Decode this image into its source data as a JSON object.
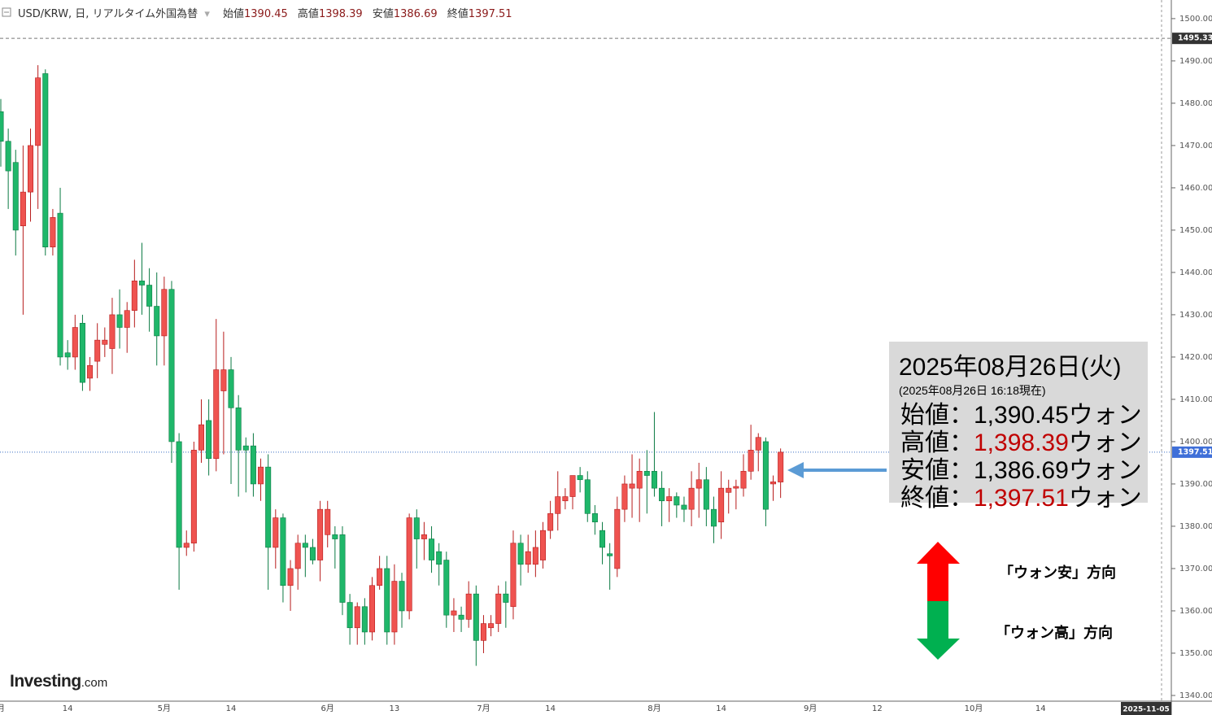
{
  "chart_data": {
    "type": "candlestick",
    "title": "USD/KRW, 日, リアルタイム外国為替",
    "header": {
      "open_label": "始値",
      "open": 1390.45,
      "high_label": "高値",
      "high": 1398.39,
      "low_label": "安値",
      "low": 1386.69,
      "close_label": "終値",
      "close": 1397.51
    },
    "up_color": "#ef5350",
    "down_color": "#1fb76a",
    "categories": [
      "月",
      null,
      null,
      null,
      null,
      null,
      null,
      null,
      null,
      "14",
      null,
      null,
      null,
      null,
      null,
      null,
      null,
      null,
      null,
      null,
      null,
      null,
      "5月",
      null,
      null,
      null,
      null,
      null,
      null,
      null,
      null,
      "14",
      null,
      null,
      null,
      null,
      null,
      null,
      null,
      null,
      null,
      null,
      null,
      null,
      "6月",
      null,
      null,
      null,
      null,
      null,
      null,
      null,
      null,
      "13",
      null,
      null,
      null,
      null,
      null,
      null,
      null,
      null,
      null,
      null,
      null,
      "7月",
      null,
      null,
      null,
      null,
      null,
      null,
      null,
      null,
      "14",
      null,
      null,
      null,
      null,
      null,
      null,
      null,
      null,
      null,
      null,
      null,
      null,
      null,
      "8月",
      null,
      null,
      null,
      null,
      null,
      null,
      null,
      null,
      "14",
      null,
      null,
      null,
      null,
      null,
      null,
      null,
      null,
      null,
      null,
      null,
      "9月",
      null,
      null,
      null,
      null,
      null,
      null,
      null,
      null,
      "12",
      null,
      null,
      null,
      null,
      null,
      null,
      null,
      null,
      null,
      null,
      null,
      null,
      "10月",
      null,
      null,
      null,
      null,
      null,
      null,
      null,
      null,
      "14",
      null,
      null,
      null,
      null,
      null,
      null,
      null,
      null,
      null,
      null,
      null,
      null,
      null,
      null,
      null
    ],
    "open": [
      1478,
      1471,
      1466,
      1451,
      1459,
      1470,
      1487,
      1446,
      1454,
      1421,
      1420,
      1428,
      1415,
      1419,
      1423,
      1422,
      1430,
      1427,
      1431,
      1438,
      1437,
      1432,
      1425,
      1436,
      1400,
      1375,
      1376,
      1398,
      1405,
      1396,
      1412,
      1417,
      1408,
      1399,
      1399,
      1390,
      1394,
      1375,
      1382,
      1366,
      1370,
      1376,
      1375,
      1372,
      1378,
      1378,
      1378,
      1362,
      1356,
      1361,
      1355,
      1366,
      1370,
      1355,
      1367,
      1360,
      1382,
      1377,
      1377,
      1374,
      1372,
      1359,
      1359,
      1358,
      1364,
      1353,
      1356,
      1357,
      1364,
      1361,
      1376,
      1371,
      1371,
      1372,
      1379,
      1383,
      1386,
      1387,
      1392,
      1391,
      1383,
      1379,
      1373.5,
      1370,
      1384,
      1389,
      1389,
      1393,
      1393,
      1389,
      1386,
      1387,
      1385,
      1384,
      1389,
      1391,
      1384,
      1381,
      1388,
      1389,
      1389,
      1393,
      1398,
      1400,
      1390,
      1390.45,
      null,
      null,
      null,
      null,
      null,
      null,
      null,
      null,
      null,
      null,
      null,
      null,
      null,
      null,
      null,
      null,
      null,
      null,
      null,
      null,
      null,
      null,
      null,
      null,
      null,
      null,
      null,
      null,
      null,
      null,
      null,
      null,
      null,
      null,
      null,
      null,
      null,
      null,
      null,
      null,
      null,
      null,
      null,
      null,
      null,
      null,
      null,
      null,
      null,
      null
    ],
    "high": [
      1481,
      1474,
      1469,
      1470,
      1474,
      1489,
      1488,
      1455,
      1460,
      1424,
      1430,
      1430,
      1420,
      1428,
      1427,
      1434,
      1436,
      1433,
      1443,
      1447,
      1441,
      1440,
      1439,
      1438,
      1402,
      1379,
      1400,
      1410,
      1410,
      1429,
      1426,
      1420,
      1411,
      1401,
      1402,
      1396,
      1397,
      1384,
      1383,
      1372,
      1378,
      1378,
      1377,
      1386,
      1386,
      1380,
      1380,
      1364,
      1362,
      1363,
      1368,
      1373,
      1373,
      1371,
      1369,
      1383,
      1384,
      1381,
      1380,
      1376,
      1374,
      1363,
      1361,
      1367,
      1366,
      1359,
      1359,
      1366,
      1367,
      1379,
      1378,
      1378,
      1379,
      1381,
      1386,
      1393,
      1389,
      1391,
      1394,
      1393,
      1385,
      1381,
      1376,
      1387,
      1392,
      1397,
      1396,
      1398,
      1407,
      1393,
      1389,
      1388,
      1387,
      1393,
      1395,
      1394,
      1387,
      1393,
      1391,
      1391,
      1397,
      1404,
      1402,
      1401,
      1392,
      1398.39,
      null,
      null,
      null,
      null,
      null,
      null,
      null,
      null,
      null,
      null,
      null,
      null,
      null,
      null,
      null,
      null,
      null,
      null,
      null,
      null,
      null,
      null,
      null,
      null,
      null,
      null,
      null,
      null,
      null,
      null,
      null,
      null,
      null,
      null,
      null,
      null,
      null,
      null,
      null,
      null,
      null,
      null,
      null,
      null,
      null,
      null,
      null,
      null,
      null,
      null
    ],
    "low": [
      1465,
      1455,
      1444,
      1430,
      1452,
      1455,
      1444,
      1444,
      1418,
      1417,
      1417,
      1412,
      1412,
      1415,
      1420,
      1416,
      1422,
      1421,
      1427,
      1430,
      1426,
      1418,
      1418,
      1395,
      1365,
      1373,
      1374,
      1395,
      1392,
      1393,
      1397,
      1390,
      1387,
      1388,
      1387,
      1386,
      1365,
      1370,
      1362,
      1360,
      1365,
      1368,
      1371,
      1367,
      1375,
      1370,
      1359,
      1352,
      1352,
      1352,
      1353,
      1365,
      1352,
      1352,
      1356,
      1358,
      1370,
      1372,
      1369,
      1366,
      1356,
      1355,
      1355,
      1356,
      1347,
      1350,
      1354,
      1355,
      1356,
      1358,
      1366,
      1369,
      1368,
      1370,
      1377,
      1379,
      1384,
      1384,
      1388,
      1381,
      1378,
      1371,
      1365,
      1368,
      1381,
      1382,
      1381,
      1383,
      1387,
      1380,
      1381,
      1382,
      1381,
      1380,
      1382,
      1380,
      1376,
      1377,
      1383,
      1384,
      1387,
      1391,
      1393,
      1380,
      1386,
      1386.69,
      null,
      null,
      null,
      null,
      null,
      null,
      null,
      null,
      null,
      null,
      null,
      null,
      null,
      null,
      null,
      null,
      null,
      null,
      null,
      null,
      null,
      null,
      null,
      null,
      null,
      null,
      null,
      null,
      null,
      null,
      null,
      null,
      null,
      null,
      null,
      null,
      null,
      null,
      null,
      null,
      null,
      null,
      null,
      null,
      null,
      null,
      null,
      null,
      null,
      null
    ],
    "close": [
      1471,
      1464,
      1450,
      1459,
      1470,
      1486,
      1446,
      1453,
      1420,
      1420,
      1427,
      1414,
      1418,
      1424,
      1424,
      1430,
      1427,
      1431,
      1438,
      1437,
      1432,
      1425,
      1436,
      1400,
      1375,
      1376,
      1398,
      1404,
      1396,
      1417,
      1417,
      1408,
      1398,
      1398,
      1390,
      1394,
      1375,
      1382,
      1366,
      1370,
      1376,
      1375,
      1372,
      1384,
      1384,
      1377,
      1362,
      1356,
      1361,
      1355,
      1366,
      1370,
      1355,
      1367,
      1360,
      1382,
      1377,
      1378,
      1372,
      1371,
      1359,
      1360,
      1358,
      1364,
      1353,
      1357,
      1357,
      1364,
      1362,
      1376,
      1371,
      1374,
      1375,
      1379,
      1383,
      1387,
      1387,
      1392,
      1391,
      1383,
      1381,
      1375,
      1373,
      1384,
      1390,
      1390,
      1393,
      1392,
      1389,
      1386,
      1387,
      1385,
      1384,
      1389,
      1391,
      1384,
      1380,
      1389,
      1389,
      1389.4,
      1393,
      1398,
      1401,
      1384,
      1390.5,
      1397.51,
      null,
      null,
      null,
      null,
      null,
      null,
      null,
      null,
      null,
      null,
      null,
      null,
      null,
      null,
      null,
      null,
      null,
      null,
      null,
      null,
      null,
      null,
      null,
      null,
      null,
      null,
      null,
      null,
      null,
      null,
      null,
      null,
      null,
      null,
      null,
      null,
      null,
      null,
      null,
      null,
      null,
      null,
      null,
      null,
      null,
      null,
      null,
      null,
      null,
      null
    ],
    "ylim": [
      1338.65,
      1504.4
    ],
    "yticks": [
      {
        "value": 1340,
        "label": "1340.00"
      },
      {
        "value": 1350,
        "label": "1350.00"
      },
      {
        "value": 1360,
        "label": "1360.00"
      },
      {
        "value": 1370,
        "label": "1370.00"
      },
      {
        "value": 1380,
        "label": "1380.00"
      },
      {
        "value": 1390,
        "label": "1390.00"
      },
      {
        "value": 1400,
        "label": "1400.00"
      },
      {
        "value": 1410,
        "label": "1410.00"
      },
      {
        "value": 1420,
        "label": "1420.00"
      },
      {
        "value": 1430,
        "label": "1430.00"
      },
      {
        "value": 1440,
        "label": "1440.00"
      },
      {
        "value": 1450,
        "label": "1450.00"
      },
      {
        "value": 1460,
        "label": "1460.00"
      },
      {
        "value": 1470,
        "label": "1470.00"
      },
      {
        "value": 1480,
        "label": "1480.00"
      },
      {
        "value": 1490,
        "label": "1490.00"
      },
      {
        "value": 1500,
        "label": "1500.00"
      }
    ],
    "max_line": 1495.33,
    "last_price": 1397.51,
    "crosshair_date": "2025-11-05",
    "logo": {
      "name": "Investing",
      "suffix": ".com"
    },
    "annotation": {
      "date": "2025年08月26日(火)",
      "timestamp": "(2025年08月26日 16:18現在)",
      "rows": [
        {
          "label": "始値：",
          "value": "1,390.45",
          "unit": "ウォン",
          "color": "#000000"
        },
        {
          "label": "高値：",
          "value": "1,398.39",
          "unit": "ウォン",
          "color": "#c00000"
        },
        {
          "label": "安値：",
          "value": "1,386.69",
          "unit": "ウォン",
          "color": "#000000"
        },
        {
          "label": "終値：",
          "value": "1,397.51",
          "unit": "ウォン",
          "color": "#c00000"
        }
      ]
    },
    "direction_labels": {
      "weak": "「ウォン安」方向",
      "strong": "「ウォン高」方向"
    }
  }
}
